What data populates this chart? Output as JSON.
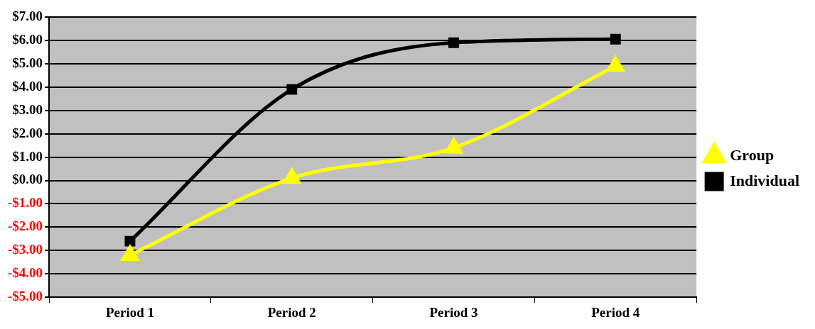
{
  "chart_data": {
    "type": "line",
    "categories": [
      "Period 1",
      "Period 2",
      "Period 3",
      "Period 4"
    ],
    "series": [
      {
        "name": "Group",
        "color": "#ffff00",
        "marker": "triangle",
        "values": [
          -3.2,
          0.1,
          1.4,
          4.9
        ]
      },
      {
        "name": "Individual",
        "color": "#000000",
        "marker": "square",
        "values": [
          -2.6,
          3.9,
          5.9,
          6.05
        ]
      }
    ],
    "ylim": [
      -5,
      7
    ],
    "yticks": [
      {
        "value": -5,
        "label": "-$5.00"
      },
      {
        "value": -4,
        "label": "-$4.00"
      },
      {
        "value": -3,
        "label": "-$3.00"
      },
      {
        "value": -2,
        "label": "-$2.00"
      },
      {
        "value": -1,
        "label": "-$1.00"
      },
      {
        "value": 0,
        "label": "$0.00"
      },
      {
        "value": 1,
        "label": "$1.00"
      },
      {
        "value": 2,
        "label": "$2.00"
      },
      {
        "value": 3,
        "label": "$3.00"
      },
      {
        "value": 4,
        "label": "$4.00"
      },
      {
        "value": 5,
        "label": "$5.00"
      },
      {
        "value": 6,
        "label": "$6.00"
      },
      {
        "value": 7,
        "label": "$7.00"
      }
    ],
    "grid": "y",
    "legend": "right",
    "line_style": "solid"
  }
}
